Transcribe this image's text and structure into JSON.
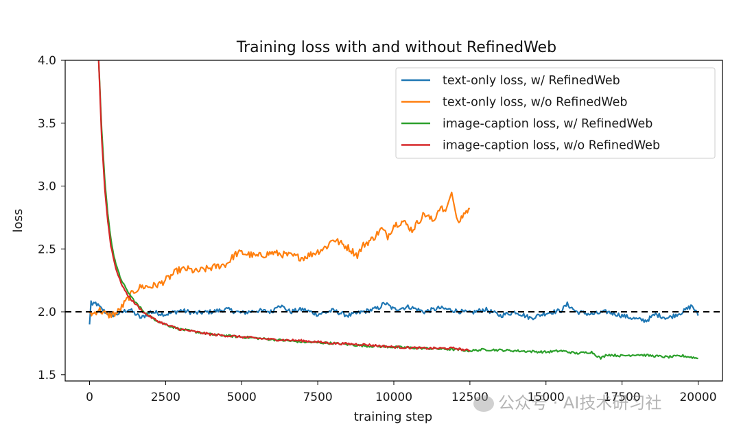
{
  "chart_data": {
    "type": "line",
    "title": "Training loss with and without RefinedWeb",
    "xlabel": "training step",
    "ylabel": "loss",
    "xlim": [
      -800,
      20800
    ],
    "ylim": [
      1.45,
      4.0
    ],
    "xticks": [
      0,
      2500,
      5000,
      7500,
      10000,
      12500,
      15000,
      17500,
      20000
    ],
    "xtick_labels": [
      "0",
      "2500",
      "5000",
      "7500",
      "10000",
      "12500",
      "15000",
      "17500",
      "20000"
    ],
    "yticks": [
      1.5,
      2.0,
      2.5,
      3.0,
      3.5,
      4.0
    ],
    "ytick_labels": [
      "1.5",
      "2.0",
      "2.5",
      "3.0",
      "3.5",
      "4.0"
    ],
    "grid": false,
    "legend_position": "top-right",
    "reference_line": {
      "y": 2.0,
      "style": "dashed",
      "color": "#000000"
    },
    "series": [
      {
        "name": "text-only loss, w/ RefinedWeb",
        "color": "#1f77b4",
        "x": [
          0,
          50,
          100,
          200,
          400,
          700,
          1000,
          1300,
          1700,
          2000,
          2500,
          3000,
          3500,
          4000,
          4500,
          5000,
          5500,
          6000,
          6200,
          6600,
          7000,
          7500,
          8000,
          8500,
          9000,
          9500,
          9700,
          10000,
          10500,
          11000,
          11500,
          12000,
          12500,
          13000,
          13500,
          14000,
          14500,
          15000,
          15500,
          15700,
          16000,
          16500,
          17000,
          17500,
          18000,
          18300,
          18600,
          19000,
          19500,
          19800,
          20000
        ],
        "y": [
          1.9,
          2.08,
          2.05,
          2.07,
          2.02,
          1.97,
          1.99,
          2.02,
          1.95,
          2.0,
          1.98,
          2.01,
          1.99,
          2.0,
          2.02,
          1.99,
          2.01,
          2.0,
          2.06,
          2.0,
          2.02,
          1.98,
          2.01,
          1.97,
          2.0,
          2.03,
          2.07,
          2.02,
          2.04,
          2.0,
          2.03,
          2.01,
          1.99,
          2.02,
          1.97,
          2.0,
          1.95,
          1.99,
          2.01,
          2.06,
          2.0,
          1.98,
          2.0,
          1.97,
          1.94,
          1.93,
          1.98,
          1.95,
          2.0,
          2.05,
          1.97
        ]
      },
      {
        "name": "text-only loss, w/o RefinedWeb",
        "color": "#ff7f0e",
        "x": [
          0,
          100,
          300,
          600,
          900,
          1100,
          1300,
          1500,
          1700,
          2000,
          2300,
          2600,
          2900,
          3200,
          3500,
          4000,
          4500,
          4800,
          5000,
          5500,
          6000,
          6500,
          7000,
          7500,
          7800,
          8000,
          8500,
          8800,
          9000,
          9300,
          9600,
          9800,
          10000,
          10300,
          10600,
          11000,
          11300,
          11500,
          11700,
          11900,
          12100,
          12300,
          12500
        ],
        "y": [
          2.0,
          1.98,
          2.02,
          1.97,
          1.99,
          2.05,
          2.12,
          2.17,
          2.2,
          2.2,
          2.22,
          2.27,
          2.33,
          2.34,
          2.32,
          2.35,
          2.38,
          2.46,
          2.47,
          2.44,
          2.47,
          2.45,
          2.43,
          2.48,
          2.52,
          2.58,
          2.51,
          2.45,
          2.53,
          2.58,
          2.66,
          2.6,
          2.69,
          2.72,
          2.65,
          2.78,
          2.72,
          2.83,
          2.8,
          2.95,
          2.7,
          2.78,
          2.82
        ]
      },
      {
        "name": "image-caption loss, w/ RefinedWeb",
        "color": "#2ca02c",
        "x": [
          300,
          400,
          500,
          600,
          700,
          800,
          900,
          1000,
          1200,
          1400,
          1600,
          1800,
          2000,
          2300,
          2600,
          3000,
          3500,
          4000,
          4500,
          5000,
          5500,
          6000,
          7000,
          8000,
          9000,
          10000,
          11000,
          12000,
          12500,
          13000,
          14000,
          15000,
          15500,
          16000,
          16500,
          16800,
          17000,
          17500,
          18000,
          18500,
          19000,
          19500,
          20000
        ],
        "y": [
          4.0,
          3.45,
          3.05,
          2.78,
          2.58,
          2.45,
          2.35,
          2.28,
          2.18,
          2.11,
          2.05,
          2.0,
          1.96,
          1.92,
          1.89,
          1.86,
          1.84,
          1.82,
          1.81,
          1.8,
          1.79,
          1.78,
          1.76,
          1.75,
          1.73,
          1.72,
          1.71,
          1.7,
          1.69,
          1.7,
          1.69,
          1.68,
          1.69,
          1.67,
          1.68,
          1.63,
          1.66,
          1.65,
          1.66,
          1.65,
          1.64,
          1.65,
          1.63
        ]
      },
      {
        "name": "image-caption loss, w/o RefinedWeb",
        "color": "#d62728",
        "x": [
          300,
          400,
          500,
          600,
          700,
          800,
          900,
          1000,
          1200,
          1400,
          1600,
          1800,
          2000,
          2300,
          2600,
          3000,
          3500,
          4000,
          4500,
          5000,
          5500,
          6000,
          7000,
          8000,
          9000,
          10000,
          11000,
          12000,
          12500
        ],
        "y": [
          4.0,
          3.38,
          2.98,
          2.72,
          2.53,
          2.41,
          2.32,
          2.25,
          2.15,
          2.09,
          2.04,
          1.99,
          1.96,
          1.92,
          1.89,
          1.86,
          1.84,
          1.82,
          1.81,
          1.8,
          1.79,
          1.78,
          1.77,
          1.75,
          1.74,
          1.72,
          1.71,
          1.71,
          1.69
        ]
      }
    ]
  },
  "watermark": {
    "text": "公众号 · AI技术研习社"
  }
}
